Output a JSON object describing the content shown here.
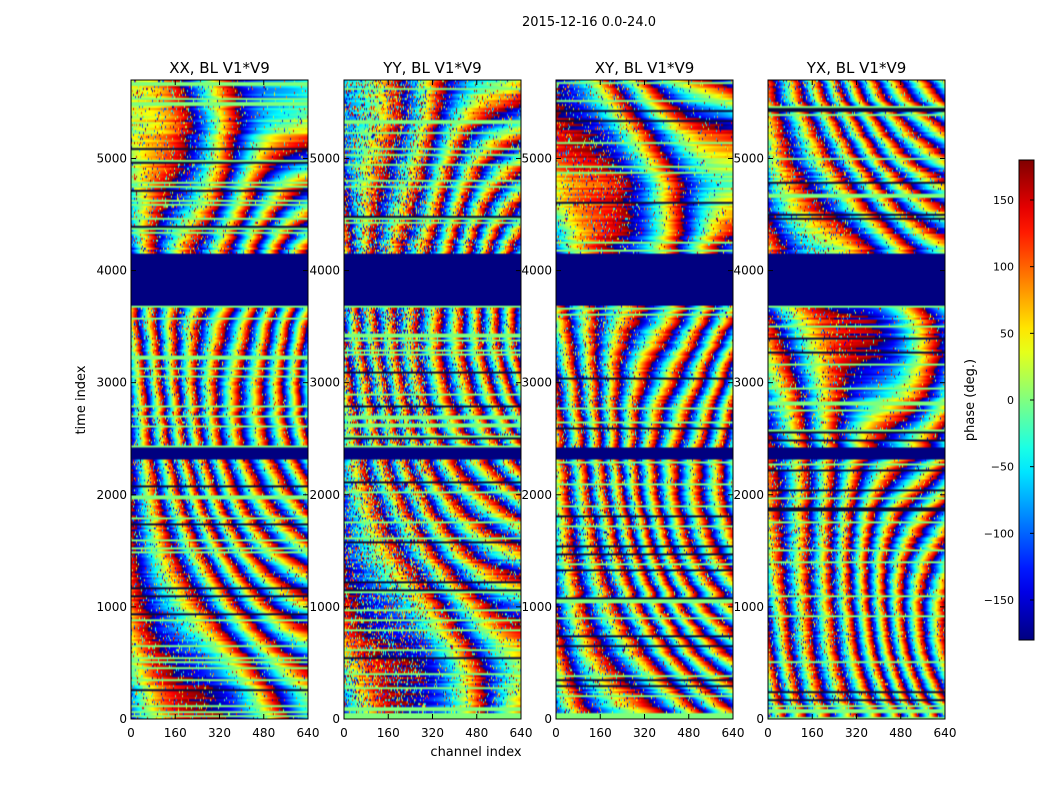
{
  "figure_title": "2015-12-16 0.0-24.0",
  "chart_data": {
    "type": "heatmap",
    "suptitle": "2015-12-16 0.0-24.0",
    "xlabel": "channel index",
    "ylabel": "time index",
    "xlim": [
      0,
      640
    ],
    "ylim": [
      0,
      5700
    ],
    "xticks": [
      0,
      160,
      320,
      480,
      640
    ],
    "yticks": [
      0,
      1000,
      2000,
      3000,
      4000,
      5000
    ],
    "panels": [
      {
        "title": "XX, BL V1*V9",
        "seed": 11
      },
      {
        "title": "YY, BL V1*V9",
        "seed": 23
      },
      {
        "title": "XY, BL V1*V9",
        "seed": 37
      },
      {
        "title": "YX, BL V1*V9",
        "seed": 51
      }
    ],
    "flagged_time_ranges": [
      [
        3680,
        4150
      ],
      [
        2320,
        2420
      ]
    ],
    "colorbar": {
      "label": "phase (deg.)",
      "range": [
        -180,
        180
      ],
      "ticks": [
        -150,
        -100,
        -50,
        0,
        50,
        100,
        150
      ],
      "colormap": "jet"
    }
  }
}
